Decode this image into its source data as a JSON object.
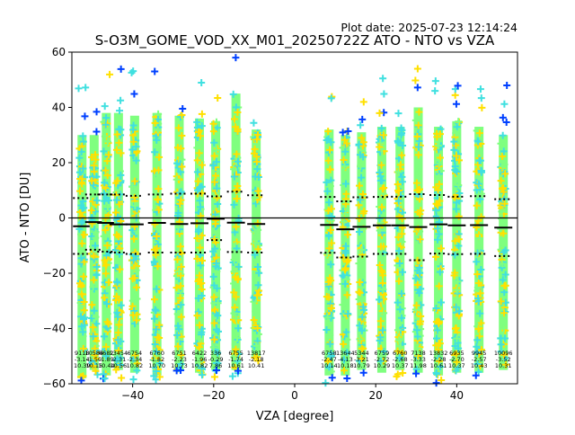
{
  "plot_date": "Plot date: 2025-07-23 12:14:24",
  "chart_data": {
    "type": "scatter",
    "title": "S-O3M_GOME_VOD_XX_M01_20250722Z ATO - NTO vs VZA",
    "xlabel": "VZA [degree]",
    "ylabel": "ATO - NTO [DU]",
    "xlim": [
      -55,
      55
    ],
    "ylim": [
      -60,
      60
    ],
    "xticks": [
      -40,
      -20,
      0,
      20,
      40
    ],
    "yticks": [
      -60,
      -40,
      -20,
      0,
      20,
      40,
      60
    ],
    "grid": false,
    "columns": [
      {
        "x": -52.5,
        "top": 30,
        "bottom": -58,
        "n": "9118",
        "mean": "-3.14",
        "std": "10.39",
        "median": -3.0,
        "upper": 7.2,
        "lower": -13.0
      },
      {
        "x": -49.5,
        "top": 30,
        "bottom": -55,
        "n": "10584",
        "mean": "-1.50",
        "std": "10.15",
        "median": -1.5,
        "upper": 8.5,
        "lower": -11.5
      },
      {
        "x": -46.5,
        "top": 38,
        "bottom": -57,
        "n": "6682",
        "mean": "-1.89",
        "std": "10.44",
        "median": -1.8,
        "upper": 8.5,
        "lower": -12.2
      },
      {
        "x": -43.5,
        "top": 38,
        "bottom": -55,
        "n": "13454",
        "mean": "-2.31",
        "std": "10.56",
        "median": -2.3,
        "upper": 8.5,
        "lower": -12.5
      },
      {
        "x": -39.5,
        "top": 37,
        "bottom": -56,
        "n": "6754",
        "mean": "-2.34",
        "std": "10.82",
        "median": -2.3,
        "upper": 8.0,
        "lower": -13.0
      },
      {
        "x": -34.0,
        "top": 38,
        "bottom": -57,
        "n": "6760",
        "mean": "-1.82",
        "std": "10.70",
        "median": -1.8,
        "upper": 8.5,
        "lower": -12.5
      },
      {
        "x": -28.5,
        "top": 37,
        "bottom": -55,
        "n": "6751",
        "mean": "-2.23",
        "std": "10.73",
        "median": -2.2,
        "upper": 8.8,
        "lower": -12.5
      },
      {
        "x": -23.5,
        "top": 36,
        "bottom": -56,
        "n": "6422",
        "mean": "-1.96",
        "std": "10.82",
        "median": -1.9,
        "upper": 8.8,
        "lower": -12.5
      },
      {
        "x": -19.5,
        "top": 35,
        "bottom": -55,
        "n": "336",
        "mean": "-0.29",
        "std": "7.86",
        "median": -0.3,
        "upper": 7.8,
        "lower": -8.0
      },
      {
        "x": -14.5,
        "top": 45,
        "bottom": -55,
        "n": "6755",
        "mean": "-1.74",
        "std": "10.61",
        "median": -1.7,
        "upper": 9.5,
        "lower": -12.3
      },
      {
        "x": -9.5,
        "top": 32,
        "bottom": -50,
        "n": "13817",
        "mean": "-2.18",
        "std": "10.41",
        "median": -2.2,
        "upper": 8.2,
        "lower": -12.5
      },
      {
        "x": 8.5,
        "top": 32,
        "bottom": -57,
        "n": "6758",
        "mean": "-2.47",
        "std": "10.14",
        "median": -2.5,
        "upper": 7.6,
        "lower": -12.6
      },
      {
        "x": 12.5,
        "top": 30,
        "bottom": -57,
        "n": "13644",
        "mean": "-4.13",
        "std": "10.18",
        "median": -4.1,
        "upper": 6.0,
        "lower": -14.3
      },
      {
        "x": 16.5,
        "top": 31,
        "bottom": -55,
        "n": "5344",
        "mean": "-3.21",
        "std": "10.79",
        "median": -3.2,
        "upper": 7.5,
        "lower": -14.0
      },
      {
        "x": 21.5,
        "top": 33,
        "bottom": -56,
        "n": "6759",
        "mean": "-2.72",
        "std": "10.29",
        "median": -2.7,
        "upper": 7.6,
        "lower": -13.0
      },
      {
        "x": 26.0,
        "top": 33,
        "bottom": -55,
        "n": "6760",
        "mean": "-2.68",
        "std": "10.37",
        "median": -2.7,
        "upper": 7.7,
        "lower": -13.0
      },
      {
        "x": 30.5,
        "top": 40,
        "bottom": -56,
        "n": "7138",
        "mean": "-3.33",
        "std": "11.98",
        "median": -3.3,
        "upper": 8.6,
        "lower": -15.3
      },
      {
        "x": 35.5,
        "top": 33,
        "bottom": -57,
        "n": "13832",
        "mean": "-2.28",
        "std": "10.61",
        "median": -2.3,
        "upper": 8.3,
        "lower": -12.9
      },
      {
        "x": 40.0,
        "top": 35,
        "bottom": -56,
        "n": "6935",
        "mean": "-2.70",
        "std": "10.37",
        "median": -2.7,
        "upper": 7.7,
        "lower": -13.1
      },
      {
        "x": 45.5,
        "top": 33,
        "bottom": -56,
        "n": "9945",
        "mean": "-2.57",
        "std": "10.43",
        "median": -2.6,
        "upper": 7.9,
        "lower": -13.0
      },
      {
        "x": 51.5,
        "top": 30,
        "bottom": -55,
        "n": "10096",
        "mean": "-3.52",
        "std": "10.31",
        "median": -3.5,
        "upper": 6.8,
        "lower": -13.8
      }
    ],
    "series_colors": [
      "#7FFF7F",
      "#FFE000",
      "#40E0E0",
      "#0040FF"
    ]
  }
}
